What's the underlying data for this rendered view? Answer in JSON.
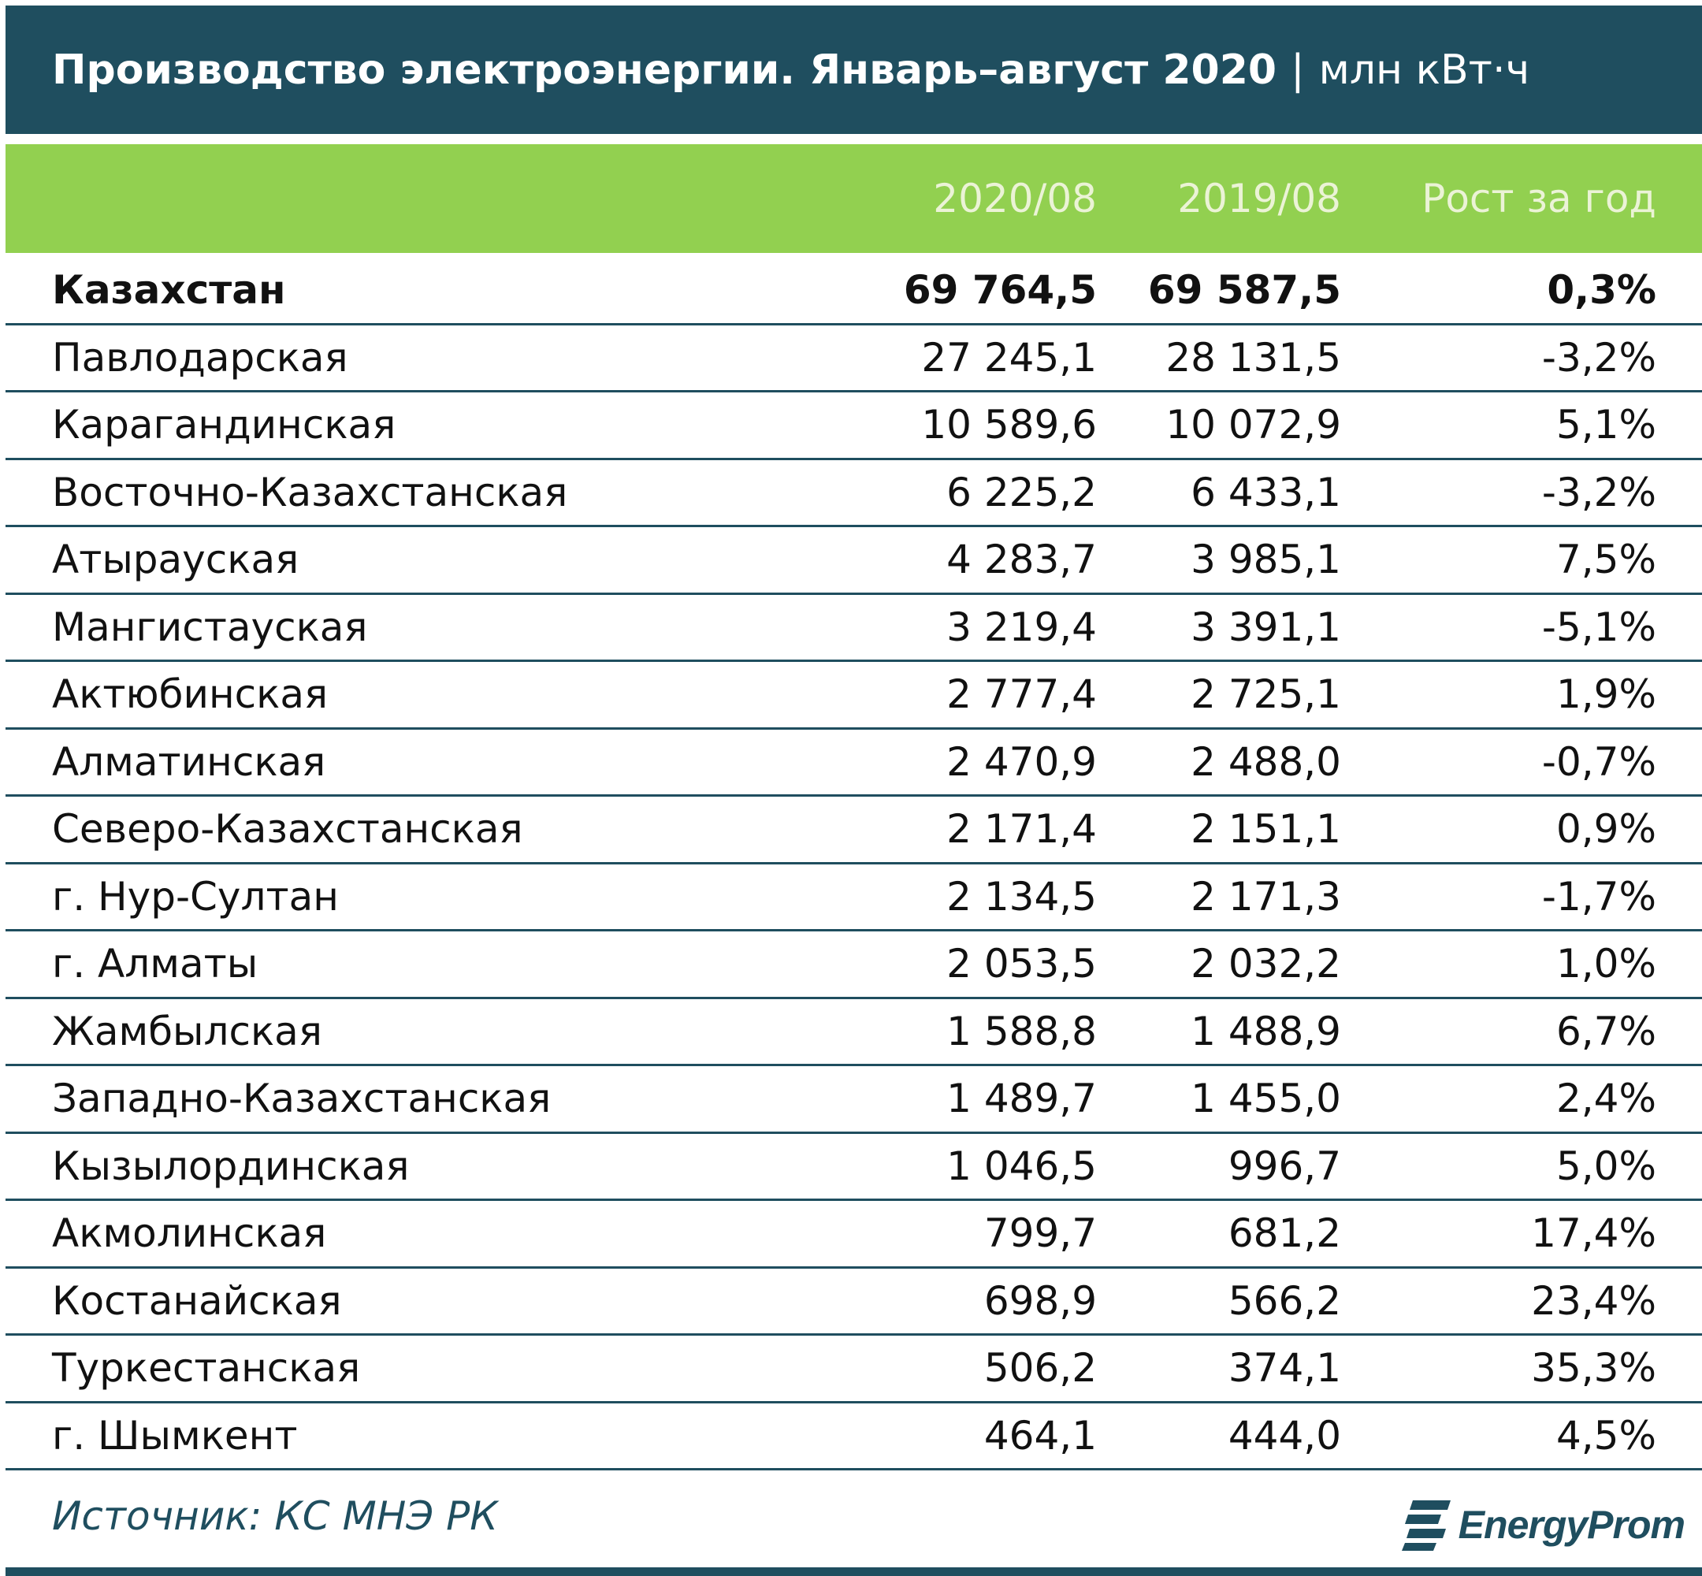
{
  "title": {
    "main": "Производство электроэнергии. Январь–август 2020",
    "separator": "|",
    "unit": "млн кВт·ч"
  },
  "colors": {
    "title_background": "#1f4e5f",
    "header_background": "#92d050",
    "rule": "#1f4e5f"
  },
  "chart_data": {
    "type": "table",
    "columns": [
      "",
      "2020/08",
      "2019/08",
      "Рост за год"
    ],
    "rows": [
      {
        "name": "Казахстан",
        "v2020": "69 764,5",
        "v2019": "69 587,5",
        "growth": "0,3%",
        "total": true
      },
      {
        "name": "Павлодарская",
        "v2020": "27 245,1",
        "v2019": "28 131,5",
        "growth": "-3,2%"
      },
      {
        "name": "Карагандинская",
        "v2020": "10 589,6",
        "v2019": "10 072,9",
        "growth": "5,1%"
      },
      {
        "name": "Восточно-Казахстанская",
        "v2020": "6 225,2",
        "v2019": "6 433,1",
        "growth": "-3,2%"
      },
      {
        "name": "Атырауская",
        "v2020": "4 283,7",
        "v2019": "3 985,1",
        "growth": "7,5%"
      },
      {
        "name": "Мангистауская",
        "v2020": "3 219,4",
        "v2019": "3 391,1",
        "growth": "-5,1%"
      },
      {
        "name": "Актюбинская",
        "v2020": "2 777,4",
        "v2019": "2 725,1",
        "growth": "1,9%"
      },
      {
        "name": "Алматинская",
        "v2020": "2 470,9",
        "v2019": "2 488,0",
        "growth": "-0,7%"
      },
      {
        "name": "Северо-Казахстанская",
        "v2020": "2 171,4",
        "v2019": "2 151,1",
        "growth": "0,9%"
      },
      {
        "name": "г. Нур-Султан",
        "v2020": "2 134,5",
        "v2019": "2 171,3",
        "growth": "-1,7%"
      },
      {
        "name": "г. Алматы",
        "v2020": "2 053,5",
        "v2019": "2 032,2",
        "growth": "1,0%"
      },
      {
        "name": "Жамбылская",
        "v2020": "1 588,8",
        "v2019": "1 488,9",
        "growth": "6,7%"
      },
      {
        "name": "Западно-Казахстанская",
        "v2020": "1 489,7",
        "v2019": "1 455,0",
        "growth": "2,4%"
      },
      {
        "name": "Кызылординская",
        "v2020": "1 046,5",
        "v2019": "996,7",
        "growth": "5,0%"
      },
      {
        "name": "Акмолинская",
        "v2020": "799,7",
        "v2019": "681,2",
        "growth": "17,4%"
      },
      {
        "name": "Костанайская",
        "v2020": "698,9",
        "v2019": "566,2",
        "growth": "23,4%"
      },
      {
        "name": "Туркестанская",
        "v2020": "506,2",
        "v2019": "374,1",
        "growth": "35,3%"
      },
      {
        "name": "г. Шымкент",
        "v2020": "464,1",
        "v2019": "444,0",
        "growth": "4,5%"
      }
    ]
  },
  "footer": {
    "source": "Источник: КС МНЭ РК",
    "logo_text": "EnergyProm"
  }
}
